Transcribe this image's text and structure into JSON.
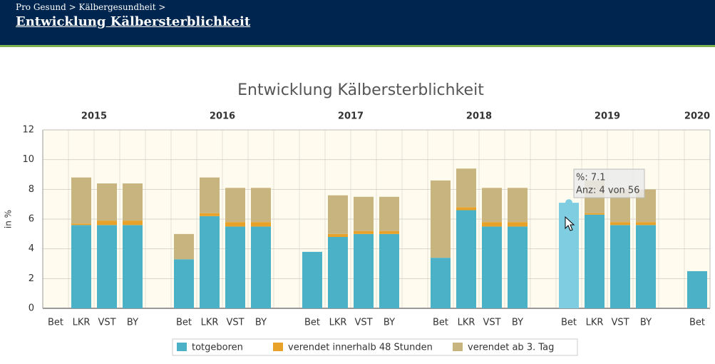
{
  "header": {
    "breadcrumb": "Pro Gesund > Kälbergesundheit >",
    "title": "Entwicklung Kälbersterblichkeit"
  },
  "chart_data": {
    "type": "stacked-bar",
    "title": "Entwicklung Kälbersterblichkeit",
    "y_label": "in %",
    "years": [
      "2015",
      "2016",
      "2017",
      "2018",
      "2019",
      "2020"
    ],
    "categories": [
      "Bet",
      "LKR",
      "VST",
      "BY",
      "Bet",
      "LKR",
      "VST",
      "BY",
      "Bet",
      "LKR",
      "VST",
      "BY",
      "Bet",
      "LKR",
      "VST",
      "BY",
      "Bet",
      "LKR",
      "VST",
      "BY",
      "Bet"
    ],
    "series": [
      {
        "name": "totgeboren",
        "color": "#4bb1c6",
        "values": [
          null,
          5.6,
          5.6,
          5.6,
          3.3,
          6.2,
          5.5,
          5.5,
          3.8,
          4.8,
          5.0,
          5.0,
          3.4,
          6.6,
          5.5,
          5.5,
          7.1,
          6.3,
          5.6,
          5.6,
          2.5
        ]
      },
      {
        "name": "verendet innerhalb 48 Stunden",
        "color": "#e8a22a",
        "values": [
          null,
          0.1,
          0.3,
          0.3,
          0,
          0.2,
          0.3,
          0.3,
          0,
          0.2,
          0.2,
          0.2,
          0,
          0.2,
          0.3,
          0.3,
          0,
          0.1,
          0.2,
          0.2,
          0
        ]
      },
      {
        "name": "verendet ab 3. Tag",
        "color": "#c8b47e",
        "values": [
          null,
          3.1,
          2.5,
          2.5,
          1.7,
          2.4,
          2.3,
          2.3,
          0,
          2.6,
          2.3,
          2.3,
          5.2,
          2.6,
          2.3,
          2.3,
          0,
          2.2,
          2.2,
          2.2,
          0
        ]
      }
    ],
    "ylim": [
      0,
      12
    ],
    "yticks": [
      0,
      2,
      4,
      6,
      8,
      10,
      12
    ],
    "grid": true,
    "tooltip": {
      "lines": [
        "%: 7.1",
        "Anz: 4 von 56"
      ]
    }
  }
}
